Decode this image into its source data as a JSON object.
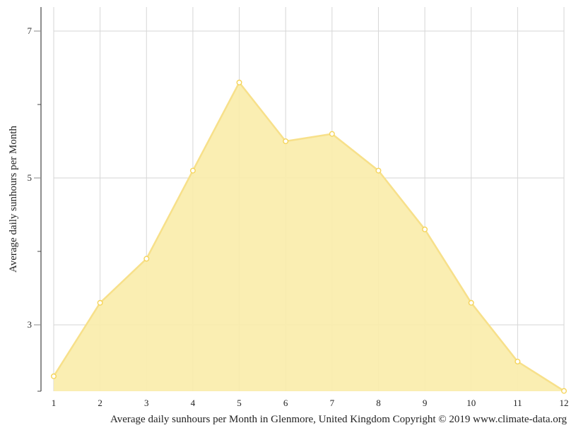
{
  "chart_data": {
    "type": "area",
    "title": "Average daily sunhours per Month in Glenmore, United Kingdom Copyright © 2019 www.climate-data.org",
    "xlabel": "",
    "ylabel": "Average daily sunhours per Month",
    "categories": [
      "1",
      "2",
      "3",
      "4",
      "5",
      "6",
      "7",
      "8",
      "9",
      "10",
      "11",
      "12"
    ],
    "series": [
      {
        "name": "Average daily sunhours",
        "values": [
          2.3,
          3.3,
          3.9,
          5.1,
          6.3,
          5.5,
          5.6,
          5.1,
          4.3,
          3.3,
          2.5,
          2.1
        ]
      }
    ],
    "y_ticks_major": [
      3,
      5,
      7
    ],
    "y_ticks_minor": [
      4,
      6
    ],
    "ylim": [
      2.1,
      7.33
    ],
    "grid": {
      "vertical": true,
      "horizontal": true
    },
    "legend": null,
    "colors": {
      "fill": "#faedab",
      "line": "#f7e08a",
      "marker_stroke": "#f5d45a",
      "marker_fill": "#ffffff",
      "grid": "#d6d6d6",
      "axis": "#444444"
    }
  },
  "labels": {
    "y_axis": "Average daily sunhours per Month",
    "caption": "Average daily sunhours per Month in Glenmore, United Kingdom Copyright © 2019 www.climate-data.org"
  }
}
